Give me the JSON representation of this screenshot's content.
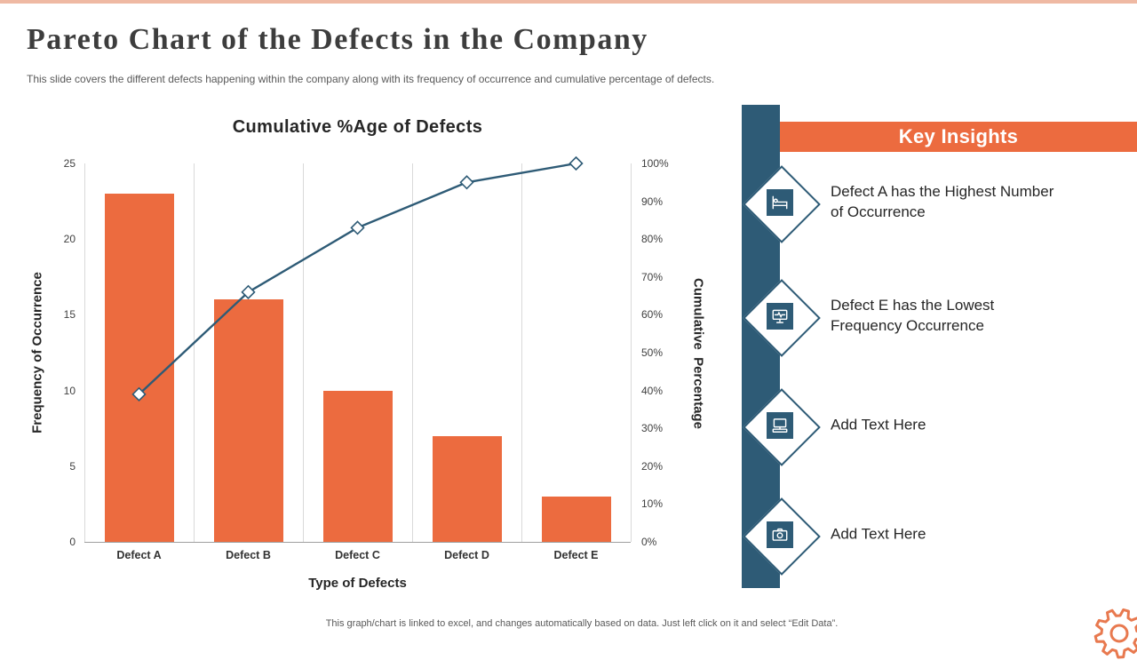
{
  "slide": {
    "title": "Pareto Chart of the Defects in the Company",
    "subtitle": "This slide covers the different defects happening within the company along with its frequency of occurrence and cumulative percentage of defects.",
    "footer_note": "This graph/chart is linked to excel, and changes automatically based on data. Just left click on it and select “Edit Data”."
  },
  "chart_data": {
    "type": "pareto (bar + line combo)",
    "title": "Cumulative %Age of Defects",
    "categories": [
      "Defect A",
      "Defect B",
      "Defect C",
      "Defect D",
      "Defect E"
    ],
    "series": [
      {
        "name": "Frequency of Occurrence",
        "chart": "bar",
        "axis": "left",
        "values": [
          23,
          16,
          10,
          7,
          3
        ],
        "color": "#EC6B3F"
      },
      {
        "name": "Cumulative Percentage",
        "chart": "line",
        "axis": "right",
        "marker": "diamond",
        "values": [
          39,
          66,
          83,
          95,
          100
        ],
        "color": "#2E5B76"
      }
    ],
    "xlabel": "Type of Defects",
    "ylabel_left": "Frequency of Occurrence",
    "ylabel_right": "Cumulative Percentage",
    "ylim_left": [
      0,
      25
    ],
    "ylim_right": [
      0,
      100
    ],
    "yticks_left": [
      "0",
      "5",
      "10",
      "15",
      "20",
      "25"
    ],
    "yticks_right": [
      "0%",
      "10%",
      "20%",
      "30%",
      "40%",
      "50%",
      "60%",
      "70%",
      "80%",
      "90%",
      "100%"
    ],
    "grid": "vertical category gridlines, light gray",
    "legend": "none"
  },
  "insights": {
    "header": "Key Insights",
    "items": [
      {
        "icon": "hospital-bed-icon",
        "text": "Defect A has the Highest Number\nof Occurrence"
      },
      {
        "icon": "medical-monitor-icon",
        "text": "Defect E has the Lowest\nFrequency Occurrence"
      },
      {
        "icon": "desktop-computer-icon",
        "text": "Add Text Here"
      },
      {
        "icon": "camera-icon",
        "text": "Add Text Here"
      }
    ]
  },
  "colors": {
    "bar_orange": "#EC6B3F",
    "line_blue": "#2E5B76",
    "panel_blue": "#2E5B76",
    "header_orange": "#EC6B3F",
    "top_border": "#EFB9A3",
    "gear_orange": "#E8794F"
  }
}
